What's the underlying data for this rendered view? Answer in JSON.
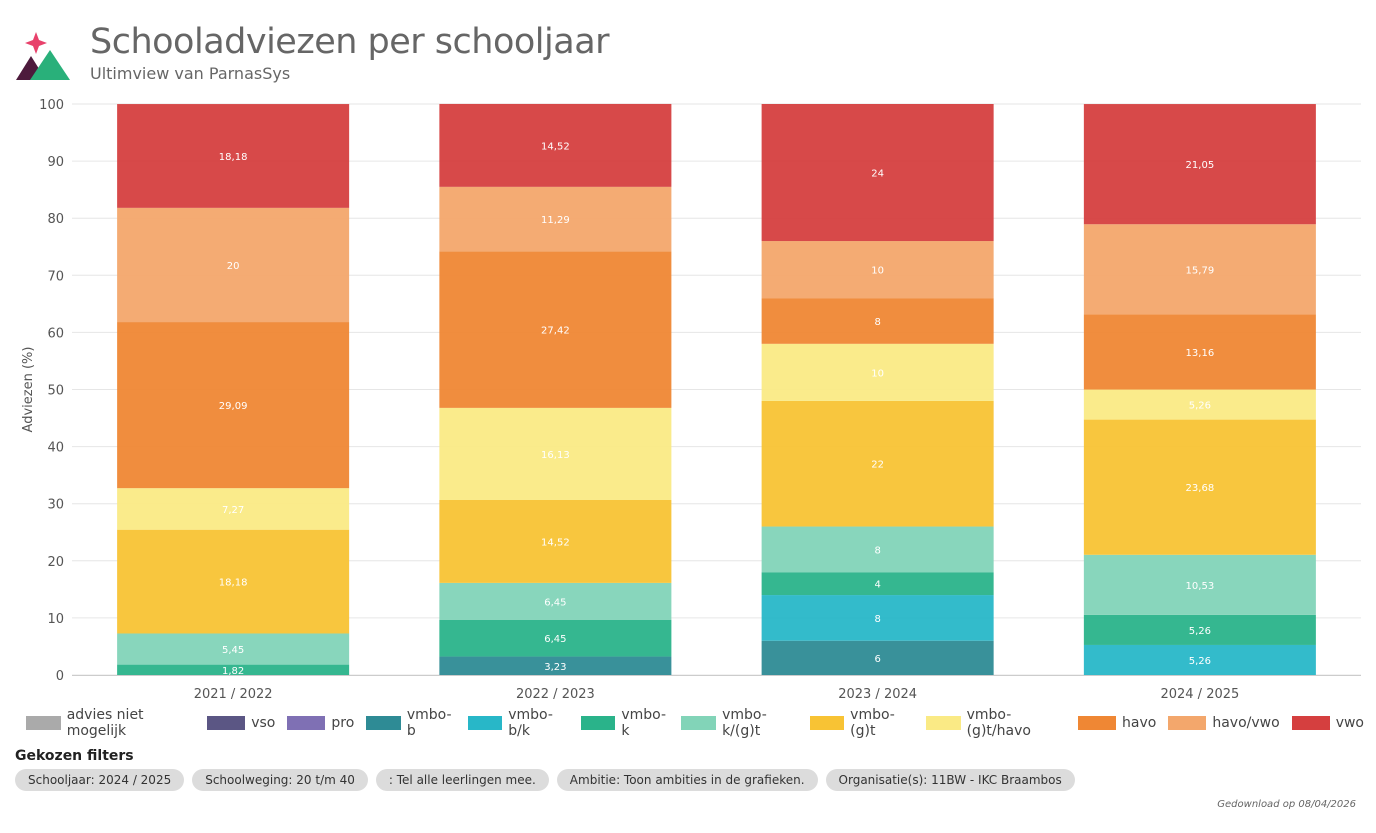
{
  "header": {
    "title": "Schooladviezen per schooljaar",
    "subtitle": "Ultimview van ParnasSys"
  },
  "chart_data": {
    "type": "bar",
    "stacked": true,
    "ylabel": "Adviezen (%)",
    "ylim": [
      0,
      100
    ],
    "yticks": [
      "0",
      "10",
      "20",
      "30",
      "40",
      "50",
      "60",
      "70",
      "80",
      "90",
      "100"
    ],
    "grid": true,
    "categories": [
      "2021 / 2022",
      "2022 / 2023",
      "2023 / 2024",
      "2024 / 2025"
    ],
    "series": [
      {
        "name": "advies niet mogelijk",
        "color": "#aaaaaa",
        "values": [
          0,
          0,
          0,
          0
        ],
        "labels": [
          "",
          "",
          "",
          ""
        ]
      },
      {
        "name": "vso",
        "color": "#5b5684",
        "values": [
          0,
          0,
          0,
          0
        ],
        "labels": [
          "",
          "",
          "",
          ""
        ]
      },
      {
        "name": "pro",
        "color": "#7f70b4",
        "values": [
          0,
          0,
          0,
          0
        ],
        "labels": [
          "",
          "",
          "",
          ""
        ]
      },
      {
        "name": "vmbo-b",
        "color": "#2e8b95",
        "values": [
          0,
          3.23,
          6,
          0
        ],
        "labels": [
          "",
          "3,23",
          "6",
          ""
        ]
      },
      {
        "name": "vmbo-b/k",
        "color": "#28b7c8",
        "values": [
          0,
          0,
          8,
          5.26
        ],
        "labels": [
          "",
          "",
          "8",
          "5,26"
        ]
      },
      {
        "name": "vmbo-k",
        "color": "#2ab38a",
        "values": [
          1.82,
          6.45,
          4,
          5.26
        ],
        "labels": [
          "1,82",
          "6,45",
          "4",
          "5,26"
        ]
      },
      {
        "name": "vmbo-k/(g)t",
        "color": "#82d4b8",
        "values": [
          5.45,
          6.45,
          8,
          10.53
        ],
        "labels": [
          "5,45",
          "6,45",
          "8",
          "10,53"
        ]
      },
      {
        "name": "vmbo-(g)t",
        "color": "#f8c334",
        "values": [
          18.18,
          14.52,
          22,
          23.68
        ],
        "labels": [
          "18,18",
          "14,52",
          "22",
          "23,68"
        ]
      },
      {
        "name": "vmbo-(g)t/havo",
        "color": "#faea85",
        "values": [
          7.27,
          16.13,
          10,
          5.26
        ],
        "labels": [
          "7,27",
          "16,13",
          "10",
          "5,26"
        ]
      },
      {
        "name": "havo",
        "color": "#ef8734",
        "values": [
          29.09,
          27.42,
          8,
          13.16
        ],
        "labels": [
          "29,09",
          "27,42",
          "8",
          "13,16"
        ]
      },
      {
        "name": "havo/vwo",
        "color": "#f3a76c",
        "values": [
          20,
          11.29,
          10,
          15.79
        ],
        "labels": [
          "20",
          "11,29",
          "10",
          "15,79"
        ]
      },
      {
        "name": "vwo",
        "color": "#d53f3f",
        "values": [
          18.18,
          14.52,
          24,
          21.05
        ],
        "labels": [
          "18,18",
          "14,52",
          "24",
          "21,05"
        ]
      }
    ]
  },
  "filters": {
    "title": "Gekozen filters",
    "chips": [
      "Schooljaar: 2024 / 2025",
      "Schoolweging: 20 t/m 40",
      ": Tel alle leerlingen mee.",
      "Ambitie: Toon ambities in de grafieken.",
      "Organisatie(s): 11BW - IKC Braambos"
    ]
  },
  "footer": {
    "download_text": "Gedownload op 08/04/2026"
  },
  "logo": {
    "icon": "parnassys-logo-icon",
    "colors": [
      "#e8416b",
      "#4d1a3c",
      "#29b07a"
    ]
  }
}
